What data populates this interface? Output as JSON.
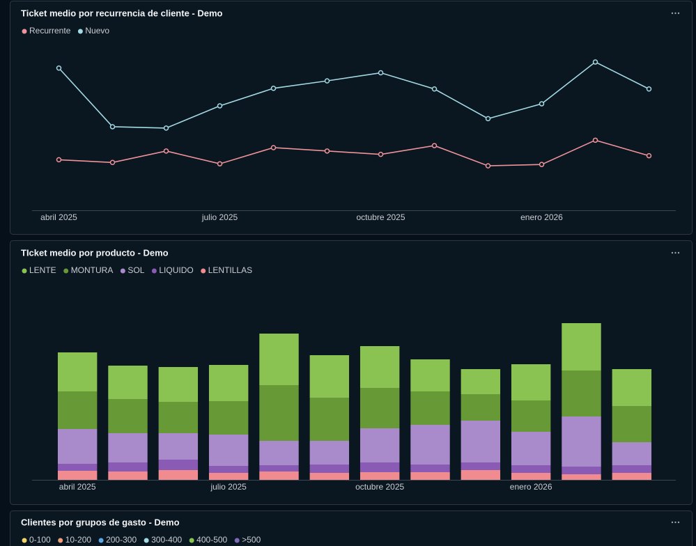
{
  "chart_data": [
    {
      "type": "line",
      "title": "Ticket medio por recurrencia de cliente - Demo",
      "categories": [
        "abril 2025",
        null,
        null,
        "julio 2025",
        null,
        null,
        "octubre 2025",
        null,
        null,
        "enero 2026",
        null,
        null
      ],
      "series": [
        {
          "name": "Recurrente",
          "color": "#f0939a",
          "values": [
            75,
            71,
            88,
            69,
            93,
            88,
            83,
            96,
            66,
            68,
            104,
            81
          ]
        },
        {
          "name": "Nuevo",
          "color": "#a3d9e3",
          "values": [
            211,
            124,
            122,
            155,
            181,
            192,
            204,
            180,
            136,
            158,
            220,
            180
          ]
        }
      ],
      "ylim": [
        0,
        250
      ]
    },
    {
      "type": "bar",
      "stacked": true,
      "title": "TIcket medio por producto - Demo",
      "categories": [
        "abril 2025",
        null,
        null,
        "julio 2025",
        null,
        null,
        "octubre 2025",
        null,
        null,
        "enero 2026",
        null,
        null
      ],
      "series": [
        {
          "name": "LENTE",
          "color": "#8bc352",
          "values": [
            56,
            48,
            50,
            52,
            74,
            61,
            60,
            46,
            36,
            52,
            68,
            53
          ]
        },
        {
          "name": "MONTURA",
          "color": "#679a37",
          "values": [
            54,
            49,
            45,
            48,
            80,
            62,
            58,
            48,
            38,
            45,
            66,
            52
          ]
        },
        {
          "name": "SOL",
          "color": "#a98acb",
          "values": [
            50,
            42,
            38,
            45,
            35,
            34,
            49,
            57,
            60,
            48,
            72,
            33
          ]
        },
        {
          "name": "LIQUIDO",
          "color": "#8a5bb5",
          "values": [
            10,
            13,
            15,
            10,
            9,
            12,
            14,
            11,
            11,
            11,
            11,
            11
          ]
        },
        {
          "name": "LENTILLAS",
          "color": "#f08c8f",
          "values": [
            13,
            12,
            14,
            10,
            12,
            10,
            11,
            11,
            14,
            10,
            8,
            10
          ]
        }
      ],
      "ylim": [
        0,
        230
      ]
    },
    {
      "type": "bar",
      "title": "Clientes por grupos de gasto - Demo",
      "series": [
        {
          "name": "0-100",
          "color": "#f3d46a"
        },
        {
          "name": "10-200",
          "color": "#f2a07b"
        },
        {
          "name": "200-300",
          "color": "#5ea7e6"
        },
        {
          "name": "300-400",
          "color": "#a3d9e3"
        },
        {
          "name": "400-500",
          "color": "#8bc352"
        },
        {
          "name": ">500",
          "color": "#7d6bb8"
        }
      ]
    }
  ]
}
